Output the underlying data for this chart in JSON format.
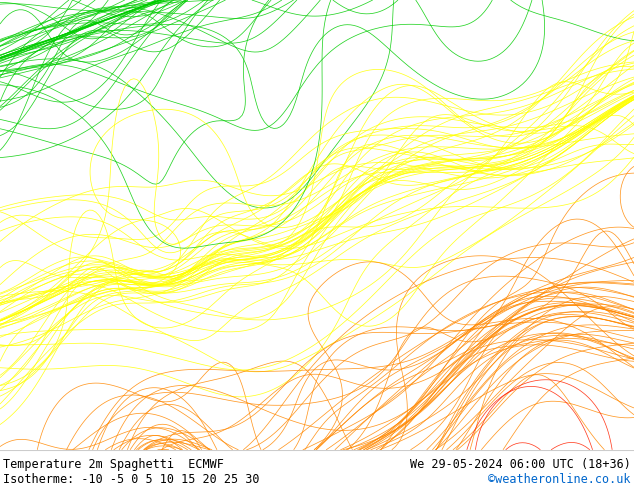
{
  "title_left": "Temperature 2m Spaghetti  ECMWF",
  "title_right": "We 29-05-2024 06:00 UTC (18+36)",
  "subtitle_left": "Isotherme: -10 -5 0 5 10 15 20 25 30",
  "subtitle_right": "©weatheronline.co.uk",
  "subtitle_right_color": "#0066cc",
  "bg_color": "#ffffff",
  "land_color": "#c8f0a0",
  "sea_color": "#e0e0e8",
  "border_color": "#aaaaaa",
  "bottom_bar_color": "#ffffff",
  "font_family": "monospace",
  "text_color": "#000000",
  "font_size": 9,
  "extent": [
    -11.5,
    25.0,
    46.0,
    61.5
  ],
  "isotherms": [
    -10,
    -5,
    0,
    5,
    10,
    15,
    20,
    25,
    30
  ],
  "isotherm_colors": [
    "#aa00ff",
    "#0000dd",
    "#00aaff",
    "#00bbbb",
    "#00cc00",
    "#ffff00",
    "#ff8800",
    "#ff2200",
    "#cc0000"
  ],
  "n_members": 51,
  "seed": 12345,
  "contour_lw": 0.55,
  "contour_alpha": 0.85
}
